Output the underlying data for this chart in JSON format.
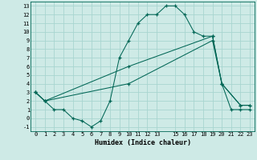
{
  "xlabel": "Humidex (Indice chaleur)",
  "xlim": [
    -0.5,
    23.5
  ],
  "ylim": [
    -1.5,
    13.5
  ],
  "xticks": [
    0,
    1,
    2,
    3,
    4,
    5,
    6,
    7,
    8,
    9,
    10,
    11,
    12,
    13,
    15,
    16,
    17,
    18,
    19,
    20,
    21,
    22,
    23
  ],
  "yticks": [
    -1,
    0,
    1,
    2,
    3,
    4,
    5,
    6,
    7,
    8,
    9,
    10,
    11,
    12,
    13
  ],
  "bg_color": "#ceeae6",
  "grid_color": "#a8d5d0",
  "line_color": "#006655",
  "line1_x": [
    0,
    1,
    2,
    3,
    4,
    5,
    6,
    7,
    8,
    9,
    10,
    11,
    12,
    13,
    14,
    15,
    16,
    17,
    18,
    19,
    20,
    21,
    22,
    23
  ],
  "line1_y": [
    3,
    2,
    1,
    1,
    0,
    -0.3,
    -1,
    -0.3,
    2,
    7,
    9,
    11,
    12,
    12,
    13,
    13,
    12,
    10,
    9.5,
    9.5,
    4,
    1,
    1,
    1
  ],
  "line2_x": [
    0,
    1,
    10,
    19,
    20,
    22,
    23
  ],
  "line2_y": [
    3,
    2,
    6,
    9.5,
    4,
    1.5,
    1.5
  ],
  "line3_x": [
    0,
    1,
    10,
    19,
    20,
    22,
    23
  ],
  "line3_y": [
    3,
    2,
    4,
    9,
    4,
    1.5,
    1.5
  ]
}
